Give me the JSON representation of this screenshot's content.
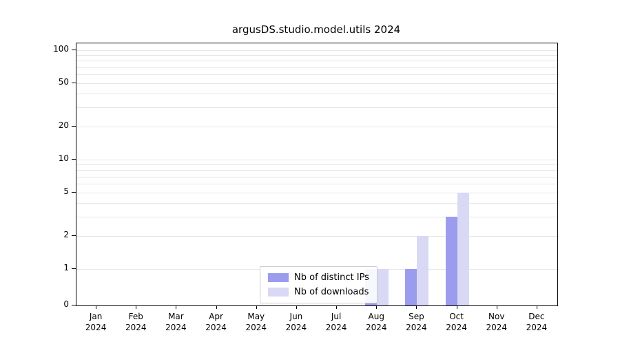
{
  "title": "argusDS.studio.model.utils 2024",
  "chart_data": {
    "type": "bar",
    "title": "argusDS.studio.model.utils 2024",
    "categories": [
      "Jan 2024",
      "Feb 2024",
      "Mar 2024",
      "Apr 2024",
      "May 2024",
      "Jun 2024",
      "Jul 2024",
      "Aug 2024",
      "Sep 2024",
      "Oct 2024",
      "Nov 2024",
      "Dec 2024"
    ],
    "series": [
      {
        "name": "Nb of distinct IPs",
        "color": "#9c9cee",
        "values": [
          0,
          0,
          0,
          0,
          0,
          0,
          0,
          1,
          1,
          3,
          0,
          0
        ]
      },
      {
        "name": "Nb of downloads",
        "color": "#d9d9f6",
        "values": [
          0,
          0,
          0,
          0,
          0,
          0,
          0,
          1,
          2,
          5,
          0,
          0
        ]
      }
    ],
    "yscale": "symlog",
    "yticks": [
      0,
      1,
      2,
      5,
      10,
      20,
      50,
      100
    ],
    "ylim": [
      0,
      100
    ],
    "xlabel": "",
    "ylabel": "",
    "grid": "horizontal",
    "legend": {
      "position": "inside-bottom-center",
      "entries": [
        "Nb of distinct IPs",
        "Nb of downloads"
      ]
    }
  }
}
